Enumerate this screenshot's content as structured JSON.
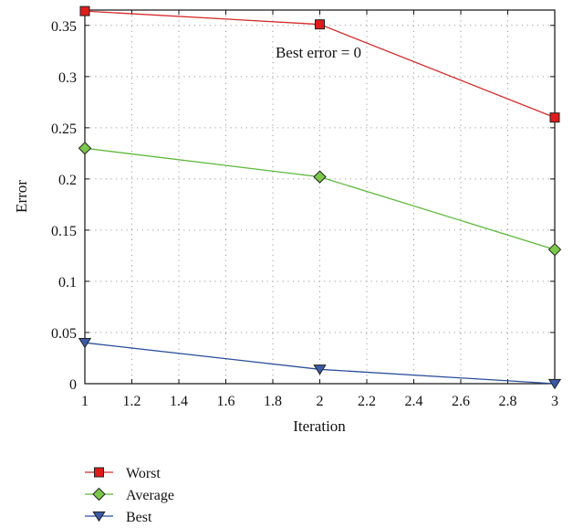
{
  "chart_data": {
    "type": "line",
    "title": "",
    "xlabel": "Iteration",
    "ylabel": "Error",
    "xlim": [
      1,
      3
    ],
    "ylim": [
      0,
      0.365
    ],
    "xticks": [
      1,
      1.2,
      1.4,
      1.6,
      1.8,
      2,
      2.2,
      2.4,
      2.6,
      2.8,
      3
    ],
    "xtick_labels": [
      "1",
      "1.2",
      "1.4",
      "1.6",
      "1.8",
      "2",
      "2.2",
      "2.4",
      "2.6",
      "2.8",
      "3"
    ],
    "yticks": [
      0,
      0.05,
      0.1,
      0.15,
      0.2,
      0.25,
      0.3,
      0.35
    ],
    "ytick_labels": [
      "0",
      "0.05",
      "0.1",
      "0.15",
      "0.2",
      "0.25",
      "0.3",
      "0.35"
    ],
    "grid": true,
    "legend_position": "below plot, left",
    "annotation": "Best error = 0",
    "x": [
      1,
      2,
      3
    ],
    "series": [
      {
        "name": "Worst",
        "values": [
          0.364,
          0.351,
          0.26
        ],
        "color": "#d42a2a",
        "fill": "#e01b1b",
        "marker": "square"
      },
      {
        "name": "Average",
        "values": [
          0.23,
          0.202,
          0.131
        ],
        "color": "#5cb83a",
        "fill": "#7cc84a",
        "marker": "diamond"
      },
      {
        "name": "Best",
        "values": [
          0.04,
          0.014,
          0.0
        ],
        "color": "#2b4e9a",
        "fill": "#3a5aa8",
        "marker": "triangle-down"
      }
    ]
  }
}
